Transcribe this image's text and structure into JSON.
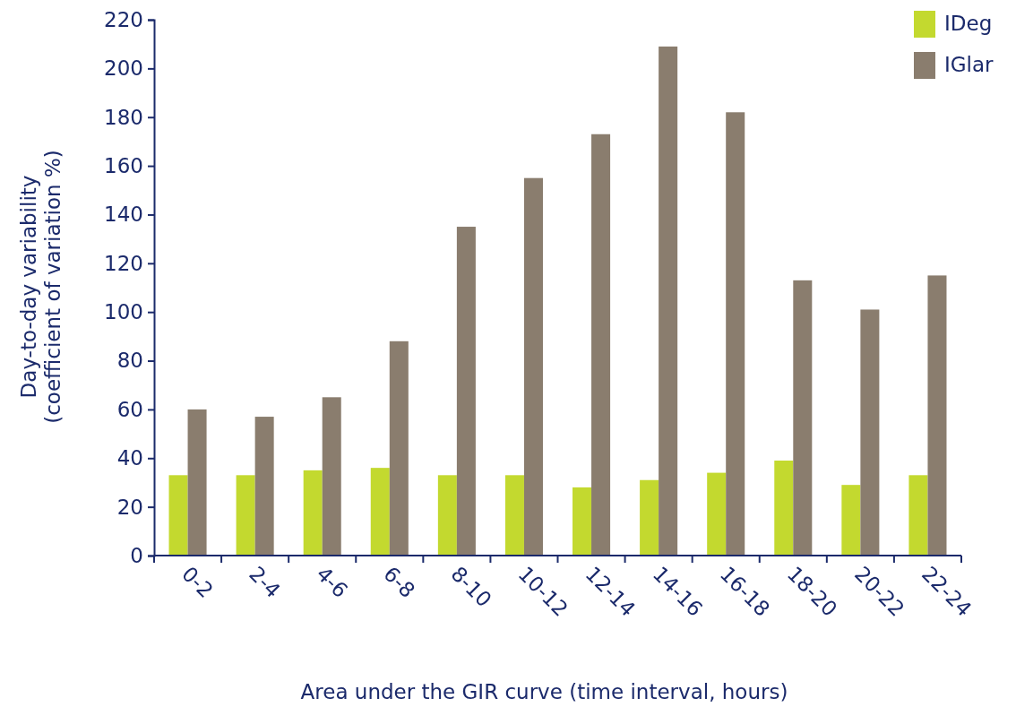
{
  "chart_data": {
    "type": "bar",
    "xlabel": "Area under the GIR curve (time interval, hours)",
    "ylabel": "Day-to-day variability\n(coefficient of variation %)",
    "categories": [
      "0-2",
      "2-4",
      "4-6",
      "6-8",
      "8-10",
      "10-12",
      "12-14",
      "14-16",
      "16-18",
      "18-20",
      "20-22",
      "22-24"
    ],
    "series": [
      {
        "name": "IDeg",
        "color": "#c3d92f",
        "values": [
          33,
          33,
          35,
          36,
          33,
          33,
          28,
          31,
          34,
          39,
          29,
          33
        ]
      },
      {
        "name": "IGlar",
        "color": "#8a7d6e",
        "values": [
          60,
          57,
          65,
          88,
          135,
          155,
          173,
          209,
          182,
          113,
          101,
          115
        ]
      }
    ],
    "ylim": [
      0,
      220
    ],
    "yticks": [
      0,
      20,
      40,
      60,
      80,
      100,
      120,
      140,
      160,
      180,
      200,
      220
    ],
    "legend": "top right",
    "grid": false
  }
}
